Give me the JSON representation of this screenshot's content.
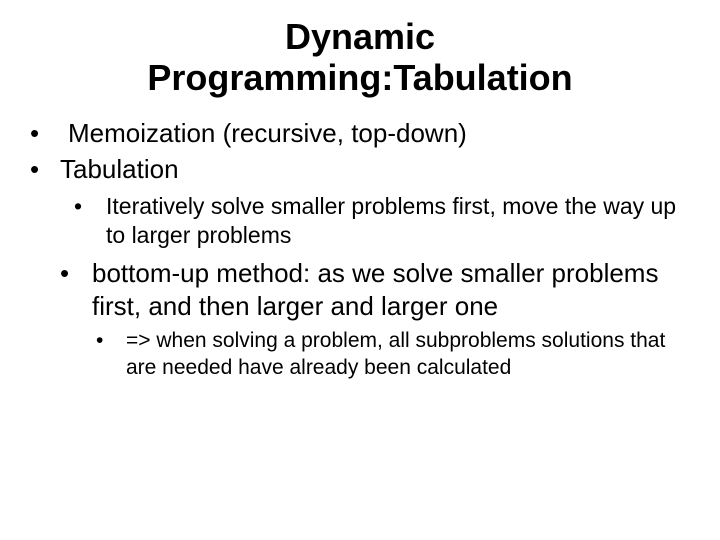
{
  "slide": {
    "title_line1": "Dynamic",
    "title_line2": "Programming:Tabulation",
    "bullets": {
      "b1": "Memoization (recursive, top-down)",
      "b2": "Tabulation",
      "b2_1": "Iteratively solve smaller problems first, move the way up to larger problems",
      "b2_2": "bottom-up method: as we solve smaller problems first, and then larger and larger one",
      "b2_2_1": "=> when solving a problem, all subproblems solutions that are needed have already been calculated"
    }
  },
  "style": {
    "background_color": "#ffffff",
    "text_color": "#000000",
    "title_fontsize": 36,
    "l1_fontsize": 26,
    "l2_fontsize": 23,
    "l3_fontsize": 21,
    "font_family": "Arial"
  }
}
